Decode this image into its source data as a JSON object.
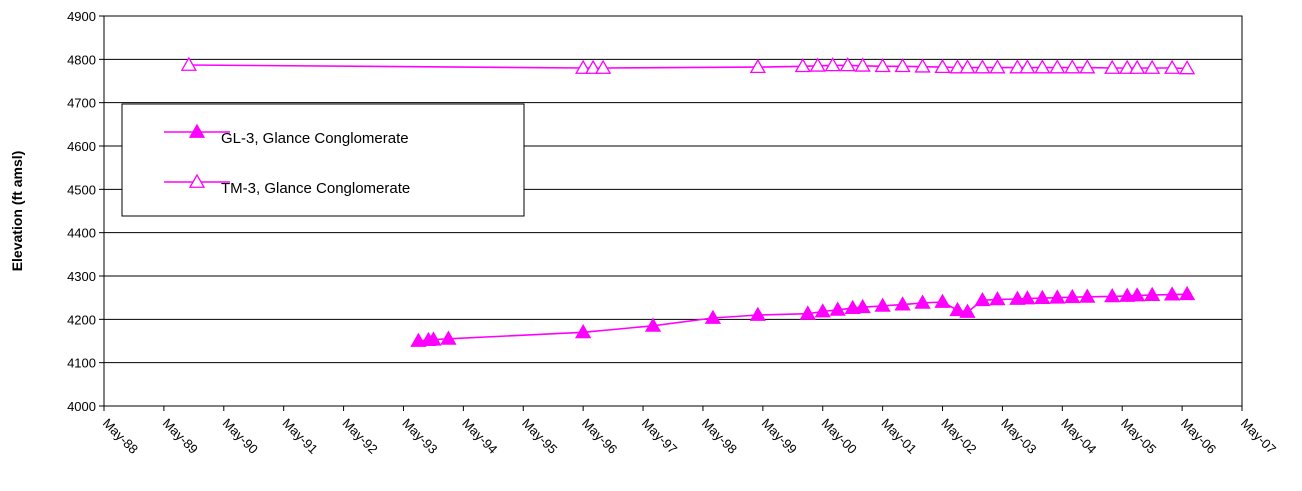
{
  "chart_data": {
    "type": "line",
    "ylabel": "Elevation (ft amsl)",
    "xlabel": "",
    "ylim": [
      4000,
      4900
    ],
    "yticks": [
      4000,
      4100,
      4200,
      4300,
      4400,
      4500,
      4600,
      4700,
      4800,
      4900
    ],
    "xlim": [
      "1988-05",
      "2007-05"
    ],
    "xtick_labels": [
      "May-88",
      "May-89",
      "May-90",
      "May-91",
      "May-92",
      "May-93",
      "May-94",
      "May-95",
      "May-96",
      "May-97",
      "May-98",
      "May-99",
      "May-00",
      "May-01",
      "May-02",
      "May-03",
      "May-04",
      "May-05",
      "May-06",
      "May-07"
    ],
    "grid": "horizontal",
    "legend_position": "upper-left",
    "colors": {
      "series": "#ff00ff"
    },
    "series": [
      {
        "name": "GL-3, Glance Conglomerate",
        "marker": "filled-triangle",
        "x": [
          "1993-08",
          "1993-10",
          "1993-11",
          "1994-02",
          "1996-05",
          "1997-07",
          "1998-07",
          "1999-04",
          "2000-02",
          "2000-05",
          "2000-08",
          "2000-11",
          "2001-01",
          "2001-05",
          "2001-09",
          "2002-01",
          "2002-05",
          "2002-08",
          "2002-10",
          "2003-01",
          "2003-04",
          "2003-08",
          "2003-10",
          "2004-01",
          "2004-04",
          "2004-07",
          "2004-10",
          "2005-03",
          "2005-06",
          "2005-08",
          "2005-11",
          "2006-03",
          "2006-06"
        ],
        "y": [
          4150,
          4152,
          4153,
          4155,
          4170,
          4185,
          4203,
          4210,
          4213,
          4218,
          4222,
          4226,
          4228,
          4231,
          4234,
          4238,
          4240,
          4221,
          4217,
          4244,
          4246,
          4247,
          4248,
          4249,
          4250,
          4251,
          4252,
          4253,
          4254,
          4255,
          4256,
          4257,
          4258
        ]
      },
      {
        "name": "TM-3, Glance Conglomerate",
        "marker": "open-triangle",
        "x": [
          "1989-10",
          "1996-05",
          "1996-07",
          "1996-09",
          "1999-04",
          "2000-01",
          "2000-04",
          "2000-07",
          "2000-10",
          "2001-01",
          "2001-05",
          "2001-09",
          "2002-01",
          "2002-05",
          "2002-08",
          "2002-10",
          "2003-01",
          "2003-04",
          "2003-08",
          "2003-10",
          "2004-01",
          "2004-04",
          "2004-07",
          "2004-10",
          "2005-03",
          "2005-06",
          "2005-08",
          "2005-11",
          "2006-03",
          "2006-06"
        ],
        "y": [
          4787,
          4780,
          4780,
          4780,
          4782,
          4784,
          4785,
          4786,
          4786,
          4785,
          4784,
          4784,
          4783,
          4782,
          4781,
          4781,
          4781,
          4781,
          4781,
          4781,
          4781,
          4781,
          4781,
          4781,
          4780,
          4780,
          4780,
          4780,
          4780,
          4779
        ]
      }
    ]
  }
}
